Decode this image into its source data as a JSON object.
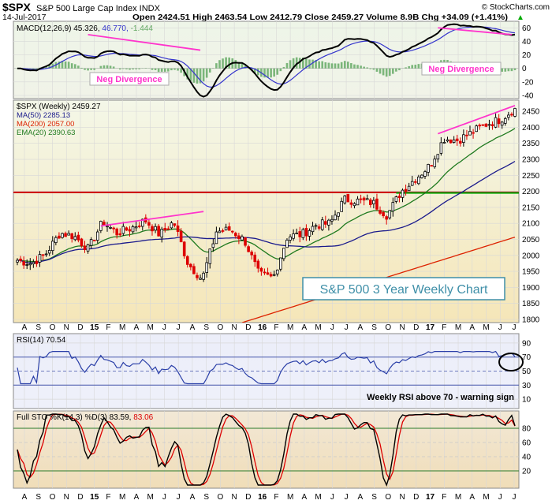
{
  "header": {
    "symbol": "$SPX",
    "name": "S&P 500 Large Cap Index INDX",
    "source": "© StockCharts.com",
    "date": "14-Jul-2017",
    "quote": "Open 2424.51  High 2463.54  Low 2412.79  Close 2459.27  Volume 8.9B  Chg +34.09 (+1.41%)",
    "change_arrow": "▲"
  },
  "colors": {
    "price_up": "#000000",
    "price_down": "#dd0000",
    "ma50": "#1a1a8c",
    "ma200": "#dd2200",
    "ema20": "#1f7a1f",
    "divergence": "#ff33cc",
    "hline_red": "#cc0000",
    "hline_green": "#00aa00",
    "macd_line": "#000000",
    "macd_signal": "#3333cc",
    "macd_hist": "#66aa66",
    "rsi": "#2a3fa8",
    "sto_k": "#000000",
    "sto_d": "#dd0000"
  },
  "x_axis": {
    "labels": [
      "A",
      "S",
      "O",
      "N",
      "D",
      "15",
      "F",
      "M",
      "A",
      "M",
      "J",
      "J",
      "A",
      "S",
      "O",
      "N",
      "D",
      "16",
      "F",
      "M",
      "A",
      "M",
      "J",
      "J",
      "A",
      "S",
      "O",
      "N",
      "D",
      "17",
      "F",
      "M",
      "A",
      "M",
      "J",
      "J"
    ],
    "bold": [
      "15",
      "16",
      "17"
    ]
  },
  "macd": {
    "legend_name": "MACD(12,26,9)",
    "legend_macd": "45.326,",
    "legend_signal": "46.770,",
    "legend_hist": "-1.444",
    "ticks": [
      "60",
      "40",
      "20",
      "0",
      "-20",
      "-40"
    ],
    "annotation_left": "Neg Divergence",
    "annotation_right": "Neg Divergence"
  },
  "price": {
    "legend": "$SPX (Weekly) 2459.27",
    "ma50": "MA(50) 2285.13",
    "ma200": "MA(200) 2057.00",
    "ema20": "EMA(20) 2390.63",
    "ticks": [
      "2450",
      "2400",
      "2350",
      "2300",
      "2250",
      "2200",
      "2150",
      "2100",
      "2050",
      "2000",
      "1950",
      "1900",
      "1850",
      "1800"
    ],
    "title_box": "S&P 500 3 Year Weekly Chart"
  },
  "rsi": {
    "legend": "RSI(14) 70.54",
    "ticks": [
      "90",
      "70",
      "50",
      "30",
      "10"
    ],
    "note": "Weekly RSI above 70 - warning sign"
  },
  "sto": {
    "legend_name": "Full STO %K(14,3) %D(3)",
    "legend_k": "83.59,",
    "legend_d": "83.06",
    "ticks": [
      "80",
      "60",
      "40",
      "20"
    ]
  },
  "chart_data": {
    "type": "line",
    "title": "S&P 500 3 Year Weekly Chart",
    "price_ylim": [
      1800,
      2470
    ],
    "horizontal_levels": [
      2200,
      2200
    ],
    "monthly_close": [
      {
        "m": "A",
        "v": 1985
      },
      {
        "m": "S",
        "v": 1975
      },
      {
        "m": "O",
        "v": 2005
      },
      {
        "m": "N",
        "v": 2070
      },
      {
        "m": "D",
        "v": 2060
      },
      {
        "m": "15",
        "v": 2020
      },
      {
        "m": "F",
        "v": 2105
      },
      {
        "m": "M",
        "v": 2070
      },
      {
        "m": "A",
        "v": 2085
      },
      {
        "m": "M",
        "v": 2110
      },
      {
        "m": "J",
        "v": 2065
      },
      {
        "m": "J",
        "v": 2105
      },
      {
        "m": "A",
        "v": 1975
      },
      {
        "m": "S",
        "v": 1925
      },
      {
        "m": "O",
        "v": 2075
      },
      {
        "m": "N",
        "v": 2080
      },
      {
        "m": "D",
        "v": 2045
      },
      {
        "m": "16",
        "v": 1940
      },
      {
        "m": "F",
        "v": 1930
      },
      {
        "m": "M",
        "v": 2060
      },
      {
        "m": "A",
        "v": 2065
      },
      {
        "m": "M",
        "v": 2095
      },
      {
        "m": "J",
        "v": 2100
      },
      {
        "m": "J",
        "v": 2175
      },
      {
        "m": "A",
        "v": 2170
      },
      {
        "m": "S",
        "v": 2165
      },
      {
        "m": "O",
        "v": 2125
      },
      {
        "m": "N",
        "v": 2200
      },
      {
        "m": "D",
        "v": 2240
      },
      {
        "m": "17",
        "v": 2280
      },
      {
        "m": "F",
        "v": 2365
      },
      {
        "m": "M",
        "v": 2360
      },
      {
        "m": "A",
        "v": 2385
      },
      {
        "m": "M",
        "v": 2410
      },
      {
        "m": "J",
        "v": 2425
      },
      {
        "m": "J",
        "v": 2459
      }
    ],
    "macd_range": [
      -40,
      65
    ],
    "rsi_range": [
      0,
      100
    ],
    "sto_range": [
      0,
      100
    ]
  }
}
